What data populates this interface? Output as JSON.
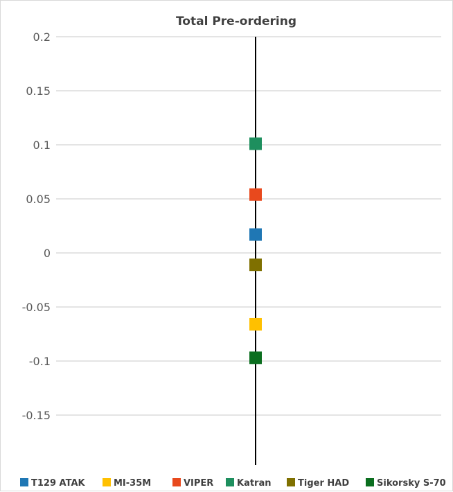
{
  "chart_data": {
    "type": "scatter",
    "title": "Total Pre-ordering",
    "xlabel": "",
    "ylabel": "",
    "ylim": [
      -0.2,
      0.2
    ],
    "yticks": [
      "0.2",
      "0.15",
      "0.1",
      "0.05",
      "0",
      "-0.05",
      "-0.1",
      "-0.15"
    ],
    "grid": true,
    "legend_position": "bottom",
    "series": [
      {
        "name": "T129 ATAK",
        "values": [
          0.017
        ],
        "color": "#1f77b4"
      },
      {
        "name": "MI-35M",
        "values": [
          -0.066
        ],
        "color": "#ffc000"
      },
      {
        "name": "VIPER",
        "values": [
          0.054
        ],
        "color": "#e8491d"
      },
      {
        "name": "Katran",
        "values": [
          0.101
        ],
        "color": "#1e8f5e"
      },
      {
        "name": "Tiger HAD",
        "values": [
          -0.011
        ],
        "color": "#7f7000"
      },
      {
        "name": "Sikorsky S-70",
        "values": [
          -0.097
        ],
        "color": "#0b6e1f"
      }
    ]
  }
}
